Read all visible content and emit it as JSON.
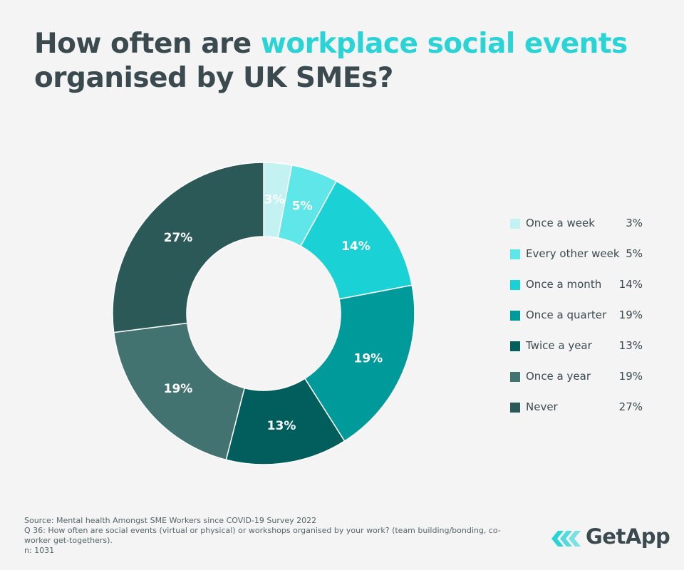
{
  "title": {
    "part1": "How often are ",
    "highlight": "workplace social events",
    "part2": "organised by UK SMEs?"
  },
  "colors": {
    "title_text": "#3b4a4e",
    "title_highlight": "#2ad3d6",
    "background": "#f4f4f4"
  },
  "chart_data": {
    "type": "pie",
    "variant": "donut",
    "title": "How often are workplace social events organised by UK SMEs?",
    "categories": [
      "Once a week",
      "Every other week",
      "Once a month",
      "Once a quarter",
      "Twice a year",
      "Once a year",
      "Never"
    ],
    "values": [
      3,
      5,
      14,
      19,
      13,
      19,
      27
    ],
    "value_labels": [
      "3%",
      "5%",
      "14%",
      "19%",
      "13%",
      "19%",
      "27%"
    ],
    "colors": [
      "#c4f2f3",
      "#5ee6e9",
      "#1ad2d5",
      "#019a9b",
      "#025e5c",
      "#437370",
      "#2a5957"
    ],
    "legend_position": "right"
  },
  "footnote": {
    "source": "Source: Mental health Amongst SME Workers since COVID-19 Survey 2022",
    "question": "Q 36: How often are social events (virtual or physical) or workshops organised by your work? (team building/bonding, co-worker get-togethers).",
    "n": "n: 1031"
  },
  "logo": {
    "icon": "getapp-chevrons-icon",
    "text": "GetApp",
    "color": "#2ad3d6"
  }
}
